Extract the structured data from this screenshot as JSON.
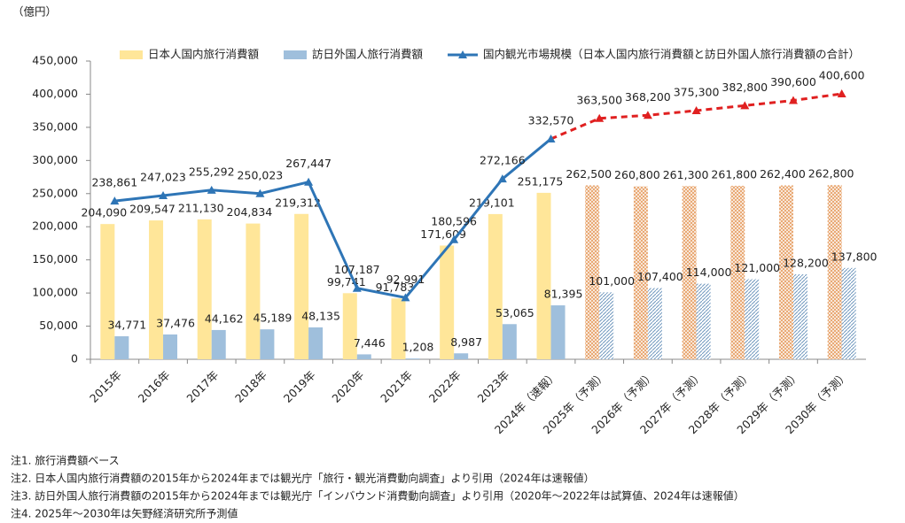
{
  "chart_data": {
    "type": "bar_line",
    "y_axis_label": "（億円）",
    "categories": [
      "2015年",
      "2016年",
      "2017年",
      "2018年",
      "2019年",
      "2020年",
      "2021年",
      "2022年",
      "2023年",
      "2024年（速報）",
      "2025年（予測）",
      "2026年（予測）",
      "2027年（予測）",
      "2028年（予測）",
      "2029年（予測）",
      "2030年（予測）"
    ],
    "forecast_start": 10,
    "series": [
      {
        "name": "日本人国内旅行消費額",
        "type": "bar",
        "color": "#ffe699",
        "forecast_color": "#e8a46c",
        "values": [
          204090,
          209547,
          211130,
          204834,
          219312,
          99741,
          91783,
          171609,
          219101,
          251175,
          262500,
          260800,
          261300,
          261800,
          262400,
          262800
        ],
        "value_labels": [
          "204,090",
          "209,547",
          "211,130",
          "204,834",
          "219,312",
          "99,741",
          "91,783",
          "171,609",
          "219,101",
          "251,175",
          "262,500",
          "260,800",
          "261,300",
          "261,800",
          "262,400",
          "262,800"
        ]
      },
      {
        "name": "訪日外国人旅行消費額",
        "type": "bar",
        "color": "#9fbfdc",
        "forecast_color": "#6f97bd",
        "values": [
          34771,
          37476,
          44162,
          45189,
          48135,
          7446,
          1208,
          8987,
          53065,
          81395,
          101000,
          107400,
          114000,
          121000,
          128200,
          137800
        ],
        "value_labels": [
          "34,771",
          "37,476",
          "44,162",
          "45,189",
          "48,135",
          "7,446",
          "1,208",
          "8,987",
          "53,065",
          "81,395",
          "101,000",
          "107,400",
          "114,000",
          "121,000",
          "128,200",
          "137,800"
        ]
      },
      {
        "name": "国内観光市場規模（日本人国内旅行消費額と訪日外国人旅行消費額の合計）",
        "type": "line",
        "color": "#2e75b6",
        "forecast_color": "#e02020",
        "values": [
          238861,
          247023,
          255292,
          250023,
          267447,
          107187,
          92991,
          180596,
          272166,
          332570,
          363500,
          368200,
          375300,
          382800,
          390600,
          400600
        ],
        "value_labels": [
          "238,861",
          "247,023",
          "255,292",
          "250,023",
          "267,447",
          "107,187",
          "92,991",
          "180,596",
          "272,166",
          "332,570",
          "363,500",
          "368,200",
          "375,300",
          "382,800",
          "390,600",
          "400,600"
        ]
      }
    ],
    "ylim": [
      0,
      450000
    ],
    "yticks": [
      0,
      {
        "value": 50000,
        "label": "50,000"
      },
      {
        "value": 100000,
        "label": "100,000"
      },
      {
        "value": 150000,
        "label": "150,000"
      },
      {
        "value": 200000,
        "label": "200,000"
      },
      {
        "value": 250000,
        "label": "250,000"
      },
      {
        "value": 300000,
        "label": "300,000"
      },
      {
        "value": 350000,
        "label": "350,000"
      },
      {
        "value": 400000,
        "label": "400,000"
      },
      {
        "value": 450000,
        "label": "450,000"
      }
    ],
    "grid": false,
    "legend": "top",
    "notes": [
      "注1. 旅行消費額ベース",
      "注2. 日本人国内旅行消費額の2015年から2024年までは観光庁「旅行・観光消費動向調査」より引用（2024年は速報値）",
      "注3. 訪日外国人旅行消費額の2015年から2024年までは観光庁「インバウンド消費動向調査」より引用（2020年～2022年は試算値、2024年は速報値）",
      "注4. 2025年～2030年は矢野経済研究所予測値"
    ]
  }
}
